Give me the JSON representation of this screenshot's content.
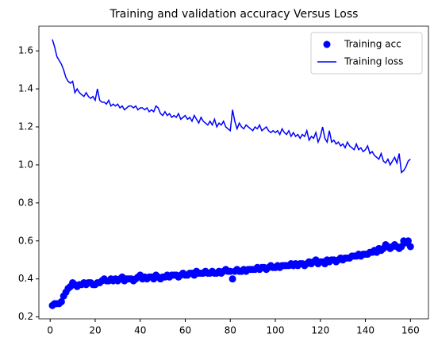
{
  "chart_data": {
    "type": "line",
    "title": "Training and validation accuracy Versus Loss",
    "x": [
      1,
      2,
      3,
      4,
      5,
      6,
      7,
      8,
      9,
      10,
      11,
      12,
      13,
      14,
      15,
      16,
      17,
      18,
      19,
      20,
      21,
      22,
      23,
      24,
      25,
      26,
      27,
      28,
      29,
      30,
      31,
      32,
      33,
      34,
      35,
      36,
      37,
      38,
      39,
      40,
      41,
      42,
      43,
      44,
      45,
      46,
      47,
      48,
      49,
      50,
      51,
      52,
      53,
      54,
      55,
      56,
      57,
      58,
      59,
      60,
      61,
      62,
      63,
      64,
      65,
      66,
      67,
      68,
      69,
      70,
      71,
      72,
      73,
      74,
      75,
      76,
      77,
      78,
      79,
      80,
      81,
      82,
      83,
      84,
      85,
      86,
      87,
      88,
      89,
      90,
      91,
      92,
      93,
      94,
      95,
      96,
      97,
      98,
      99,
      100,
      101,
      102,
      103,
      104,
      105,
      106,
      107,
      108,
      109,
      110,
      111,
      112,
      113,
      114,
      115,
      116,
      117,
      118,
      119,
      120,
      121,
      122,
      123,
      124,
      125,
      126,
      127,
      128,
      129,
      130,
      131,
      132,
      133,
      134,
      135,
      136,
      137,
      138,
      139,
      140,
      141,
      142,
      143,
      144,
      145,
      146,
      147,
      148,
      149,
      150,
      151,
      152,
      153,
      154,
      155,
      156,
      157,
      158,
      159,
      160
    ],
    "series": [
      {
        "name": "Training acc",
        "color": "#0000ff",
        "mode": "markers",
        "values": [
          0.26,
          0.27,
          0.27,
          0.27,
          0.28,
          0.31,
          0.33,
          0.35,
          0.36,
          0.38,
          0.37,
          0.36,
          0.37,
          0.37,
          0.38,
          0.37,
          0.38,
          0.38,
          0.37,
          0.37,
          0.38,
          0.38,
          0.39,
          0.4,
          0.39,
          0.39,
          0.4,
          0.39,
          0.4,
          0.39,
          0.4,
          0.41,
          0.39,
          0.4,
          0.4,
          0.4,
          0.39,
          0.4,
          0.41,
          0.42,
          0.4,
          0.41,
          0.4,
          0.41,
          0.41,
          0.4,
          0.42,
          0.41,
          0.4,
          0.41,
          0.41,
          0.42,
          0.41,
          0.42,
          0.42,
          0.42,
          0.41,
          0.42,
          0.43,
          0.42,
          0.42,
          0.43,
          0.43,
          0.42,
          0.44,
          0.43,
          0.43,
          0.43,
          0.44,
          0.43,
          0.43,
          0.44,
          0.43,
          0.43,
          0.44,
          0.43,
          0.44,
          0.45,
          0.44,
          0.44,
          0.4,
          0.44,
          0.45,
          0.44,
          0.44,
          0.45,
          0.44,
          0.45,
          0.45,
          0.45,
          0.45,
          0.46,
          0.45,
          0.46,
          0.46,
          0.45,
          0.46,
          0.47,
          0.46,
          0.46,
          0.47,
          0.46,
          0.47,
          0.47,
          0.47,
          0.47,
          0.48,
          0.47,
          0.48,
          0.47,
          0.48,
          0.48,
          0.47,
          0.48,
          0.49,
          0.48,
          0.49,
          0.5,
          0.48,
          0.49,
          0.49,
          0.48,
          0.5,
          0.49,
          0.5,
          0.5,
          0.49,
          0.5,
          0.51,
          0.5,
          0.51,
          0.51,
          0.51,
          0.52,
          0.52,
          0.52,
          0.53,
          0.52,
          0.53,
          0.53,
          0.53,
          0.54,
          0.54,
          0.55,
          0.54,
          0.56,
          0.55,
          0.56,
          0.58,
          0.57,
          0.56,
          0.57,
          0.58,
          0.57,
          0.56,
          0.57,
          0.6,
          0.59,
          0.6,
          0.57
        ]
      },
      {
        "name": "Training loss",
        "color": "#0000ff",
        "mode": "line",
        "values": [
          1.66,
          1.62,
          1.57,
          1.55,
          1.53,
          1.5,
          1.46,
          1.44,
          1.43,
          1.44,
          1.38,
          1.4,
          1.38,
          1.37,
          1.36,
          1.38,
          1.36,
          1.35,
          1.36,
          1.34,
          1.4,
          1.34,
          1.33,
          1.33,
          1.32,
          1.34,
          1.31,
          1.32,
          1.31,
          1.32,
          1.3,
          1.31,
          1.29,
          1.3,
          1.31,
          1.31,
          1.3,
          1.31,
          1.29,
          1.3,
          1.3,
          1.29,
          1.3,
          1.28,
          1.29,
          1.28,
          1.31,
          1.3,
          1.27,
          1.26,
          1.28,
          1.26,
          1.27,
          1.25,
          1.26,
          1.25,
          1.27,
          1.24,
          1.25,
          1.26,
          1.24,
          1.25,
          1.23,
          1.26,
          1.24,
          1.22,
          1.25,
          1.23,
          1.22,
          1.21,
          1.23,
          1.21,
          1.24,
          1.2,
          1.22,
          1.21,
          1.23,
          1.2,
          1.19,
          1.18,
          1.29,
          1.23,
          1.19,
          1.22,
          1.2,
          1.19,
          1.21,
          1.2,
          1.19,
          1.18,
          1.2,
          1.19,
          1.21,
          1.18,
          1.19,
          1.2,
          1.18,
          1.17,
          1.18,
          1.17,
          1.18,
          1.16,
          1.19,
          1.17,
          1.16,
          1.18,
          1.15,
          1.17,
          1.15,
          1.16,
          1.14,
          1.16,
          1.15,
          1.18,
          1.13,
          1.15,
          1.14,
          1.17,
          1.12,
          1.15,
          1.2,
          1.14,
          1.12,
          1.18,
          1.12,
          1.13,
          1.11,
          1.12,
          1.1,
          1.11,
          1.09,
          1.12,
          1.1,
          1.09,
          1.08,
          1.11,
          1.08,
          1.09,
          1.07,
          1.08,
          1.1,
          1.06,
          1.07,
          1.05,
          1.04,
          1.03,
          1.06,
          1.02,
          1.01,
          1.03,
          1.0,
          1.02,
          1.04,
          1.01,
          1.06,
          0.96,
          0.97,
          0.99,
          1.02,
          1.03
        ]
      }
    ],
    "xlim": [
      -5,
      168
    ],
    "xticks": [
      0,
      20,
      40,
      60,
      80,
      100,
      120,
      140,
      160
    ],
    "ylim": [
      0.19,
      1.73
    ],
    "yticks": [
      0.2,
      0.4,
      0.6,
      0.8,
      {
        "value": 1,
        "label": "1.0"
      },
      1.2,
      1.4,
      1.6
    ],
    "legend": "upper right"
  }
}
